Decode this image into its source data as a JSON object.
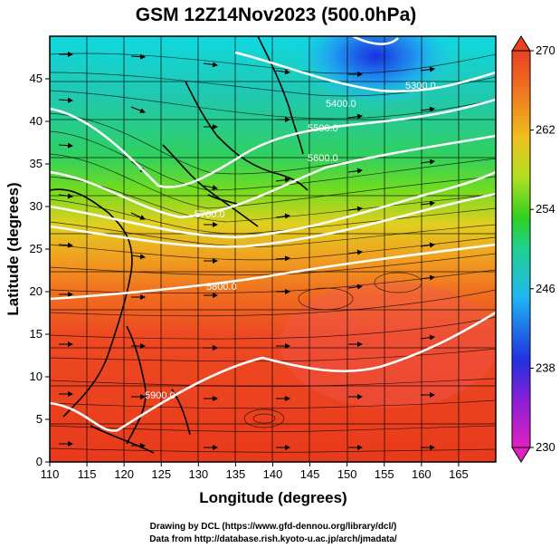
{
  "title": "GSM 12Z14Nov2023 (500.0hPa)",
  "x_axis": {
    "label": "Longitude (degrees)",
    "ticks": [
      "110",
      "115",
      "120",
      "125",
      "130",
      "135",
      "140",
      "145",
      "150",
      "155",
      "160",
      "165"
    ],
    "range": [
      110,
      170
    ]
  },
  "y_axis": {
    "label": "Latitude  (degrees)",
    "ticks": [
      "0",
      "5",
      "10",
      "15",
      "20",
      "25",
      "30",
      "35",
      "40",
      "45"
    ],
    "range": [
      0,
      50
    ]
  },
  "colorbar": {
    "ticks": [
      "230",
      "238",
      "246",
      "254",
      "262",
      "270"
    ],
    "range": [
      230,
      270
    ],
    "colors": [
      "#e020c0",
      "#8a20d8",
      "#2030e0",
      "#20b8f0",
      "#20d090",
      "#30d020",
      "#b0e020",
      "#f0c020",
      "#f08020",
      "#e84020"
    ]
  },
  "contours": {
    "labels": [
      "5300.0",
      "5400.0",
      "5500.0",
      "5600.0",
      "5700.0",
      "5800.0",
      "5900.0"
    ],
    "color": "#ffffff"
  },
  "credits": {
    "line1": "Drawing by DCL (https://www.gfd-dennou.org/library/dcl/)",
    "line2": "Data from http://database.rish.kyoto-u.ac.jp/arch/jmadata/"
  }
}
